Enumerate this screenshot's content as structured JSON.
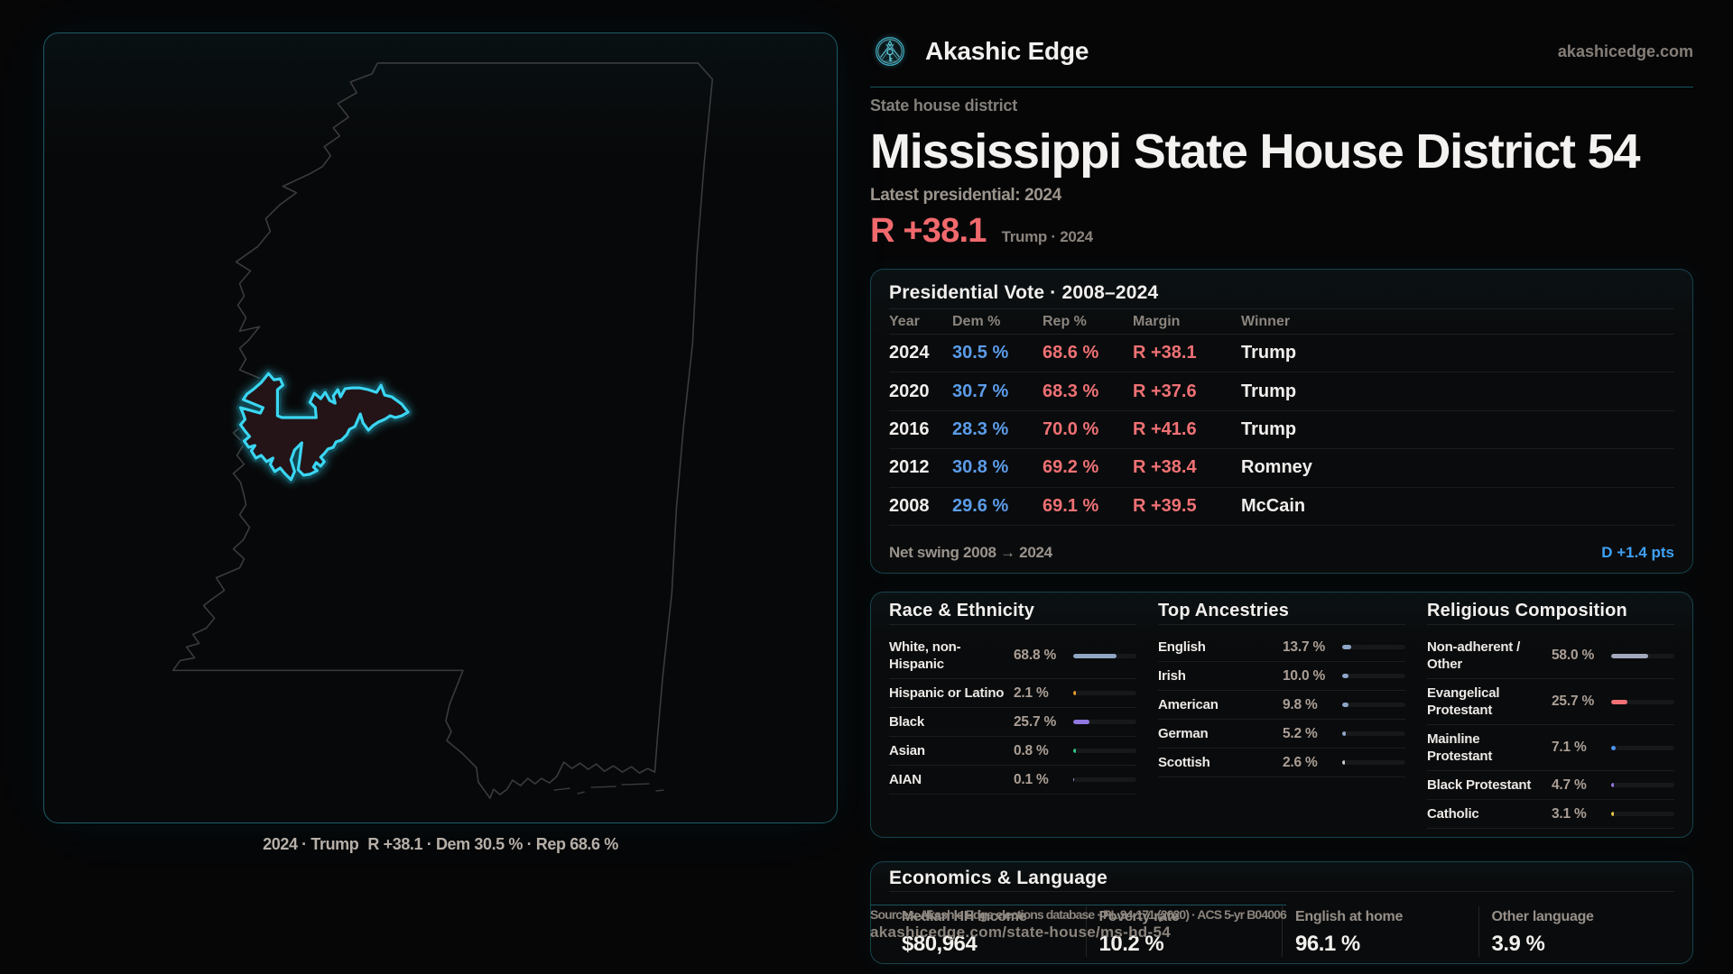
{
  "brand": {
    "name": "Akashic Edge",
    "domain": "akashicedge.com",
    "logo_icon": "akashic-emblem-icon"
  },
  "header": {
    "kicker": "State house district",
    "title": "Mississippi State House District 54",
    "latest_label": "Latest presidential: 2024",
    "headline_margin": "R +38.1",
    "headline_note": "Trump · 2024"
  },
  "map": {
    "region": "Mississippi",
    "highlight": "State House District 54",
    "caption_prefix": "2024 · Trump",
    "caption_margin": "R +38.1",
    "caption_detail": "· Dem 30.5 % · Rep 68.6 %",
    "outline_color": "#3b3b3d",
    "district_stroke": "#3ad6f2",
    "district_fill": "#241418"
  },
  "vote_panel": {
    "title": "Presidential Vote · 2008–2024",
    "columns": [
      "Year",
      "Dem %",
      "Rep %",
      "Margin",
      "Winner"
    ],
    "rows": [
      {
        "year": "2024",
        "dem": "30.5 %",
        "rep": "68.6 %",
        "margin": "R +38.1",
        "winner": "Trump"
      },
      {
        "year": "2020",
        "dem": "30.7 %",
        "rep": "68.3 %",
        "margin": "R +37.6",
        "winner": "Trump"
      },
      {
        "year": "2016",
        "dem": "28.3 %",
        "rep": "70.0 %",
        "margin": "R +41.6",
        "winner": "Trump"
      },
      {
        "year": "2012",
        "dem": "30.8 %",
        "rep": "69.2 %",
        "margin": "R +38.4",
        "winner": "Romney"
      },
      {
        "year": "2008",
        "dem": "29.6 %",
        "rep": "69.1 %",
        "margin": "R +39.5",
        "winner": "McCain"
      }
    ],
    "net_swing_label": "Net swing 2008 → 2024",
    "net_swing_value": "D +1.4 pts"
  },
  "demographics": {
    "race": {
      "title": "Race & Ethnicity",
      "rows": [
        {
          "label": "White, non-Hispanic",
          "value": "68.8 %",
          "pct": 68.8,
          "color": "#8fa6c4"
        },
        {
          "label": "Hispanic or Latino",
          "value": "2.1 %",
          "pct": 2.1,
          "color": "#e89b2e"
        },
        {
          "label": "Black",
          "value": "25.7 %",
          "pct": 25.7,
          "color": "#9177e0"
        },
        {
          "label": "Asian",
          "value": "0.8 %",
          "pct": 0.8,
          "color": "#2ec487"
        },
        {
          "label": "AIAN",
          "value": "0.1 %",
          "pct": 0.1,
          "color": "#8fa6c4"
        }
      ]
    },
    "ancestries": {
      "title": "Top Ancestries",
      "rows": [
        {
          "label": "English",
          "value": "13.7 %",
          "pct": 13.7,
          "color": "#8ea6c8"
        },
        {
          "label": "Irish",
          "value": "10.0 %",
          "pct": 10.0,
          "color": "#8ea6c8"
        },
        {
          "label": "American",
          "value": "9.8 %",
          "pct": 9.8,
          "color": "#8ea6c8"
        },
        {
          "label": "German",
          "value": "5.2 %",
          "pct": 5.2,
          "color": "#8ea6c8"
        },
        {
          "label": "Scottish",
          "value": "2.6 %",
          "pct": 2.6,
          "color": "#c8cdd6"
        }
      ]
    },
    "religion": {
      "title": "Religious Composition",
      "rows": [
        {
          "label": "Non-adherent / Other",
          "value": "58.0 %",
          "pct": 58.0,
          "color": "#a3a9bd"
        },
        {
          "label": "Evangelical Protestant",
          "value": "25.7 %",
          "pct": 25.7,
          "color": "#ef7175"
        },
        {
          "label": "Mainline Protestant",
          "value": "7.1 %",
          "pct": 7.1,
          "color": "#4f93f0"
        },
        {
          "label": "Black Protestant",
          "value": "4.7 %",
          "pct": 4.7,
          "color": "#9177e0"
        },
        {
          "label": "Catholic",
          "value": "3.1 %",
          "pct": 3.1,
          "color": "#e5c547"
        }
      ]
    }
  },
  "economics": {
    "title": "Economics & Language",
    "stats": [
      {
        "label": "Median HH income",
        "value": "$80,964"
      },
      {
        "label": "Poverty rate",
        "value": "10.2 %"
      },
      {
        "label": "English at home",
        "value": "96.1 %"
      },
      {
        "label": "Other language",
        "value": "3.9 %"
      }
    ]
  },
  "sources": {
    "line1": "Sources: Akashic Edge elections database · PL 94-171 (2020) · ACS 5-yr B04006",
    "line2": "akashicedge.com/state-house/ms-hd-54"
  },
  "accents": {
    "dem_blue": "#5b9ce9",
    "swing_blue": "#3fa1f4",
    "rep_red": "#ef7175",
    "panel_border_teal": "#17434c",
    "map_cyan": "#3ad6f2"
  }
}
